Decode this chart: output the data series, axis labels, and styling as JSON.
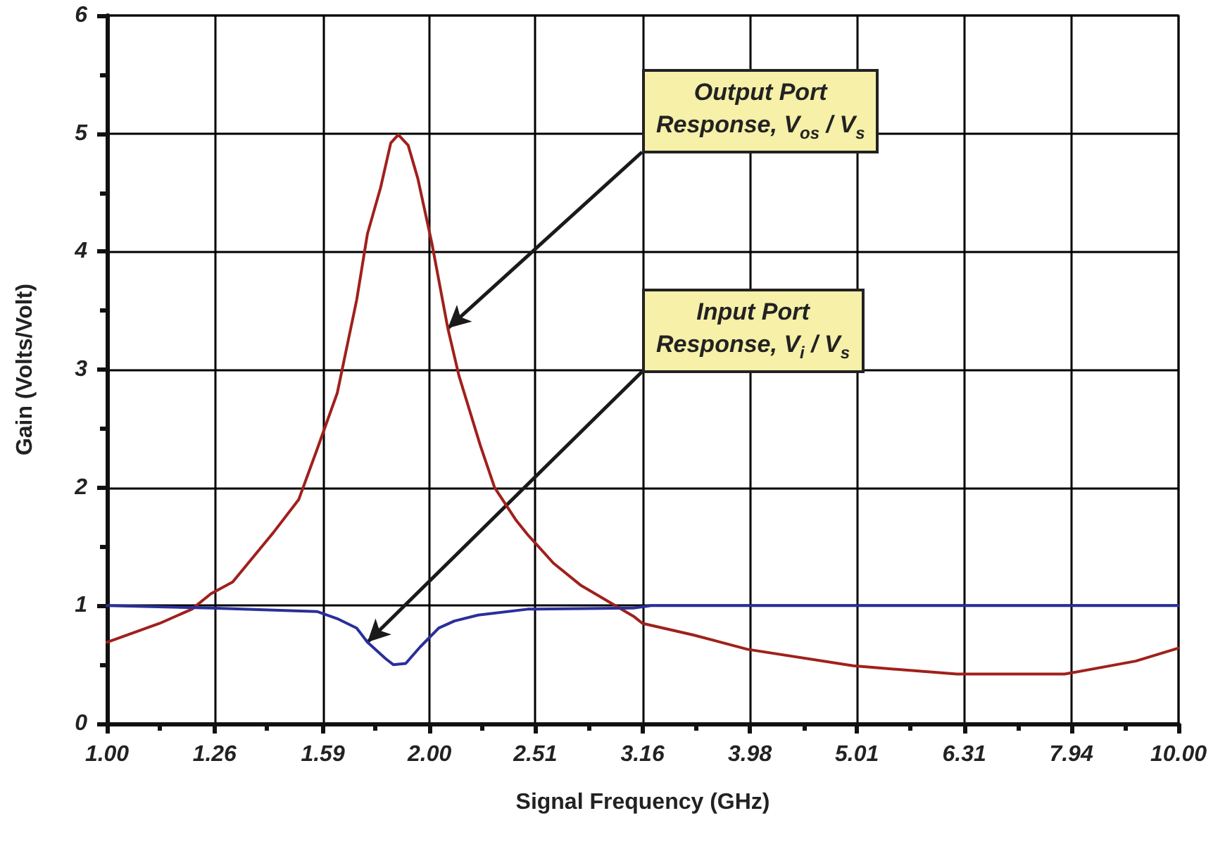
{
  "chart_data": {
    "type": "line",
    "xlabel": "Signal Frequency (GHz)",
    "ylabel": "Gain (Volts/Volt)",
    "log": "x",
    "xlim": [
      1,
      10
    ],
    "xticks": [
      {
        "value": 1,
        "label": "1.00"
      },
      {
        "value": 1.12,
        "label": null
      },
      1.26,
      {
        "value": 1.41,
        "label": null
      },
      1.59,
      {
        "value": 1.78,
        "label": null
      },
      {
        "value": 2,
        "label": "2.00"
      },
      {
        "value": 2.24,
        "label": null
      },
      2.51,
      {
        "value": 2.82,
        "label": null
      },
      3.16,
      {
        "value": 3.55,
        "label": null
      },
      3.98,
      {
        "value": 4.47,
        "label": null
      },
      5.01,
      {
        "value": 5.62,
        "label": null
      },
      6.31,
      {
        "value": 7.08,
        "label": null
      },
      7.94,
      {
        "value": 8.91,
        "label": null
      },
      {
        "value": 10,
        "label": "10.00"
      }
    ],
    "ylim": [
      0,
      6
    ],
    "yticks": [
      0,
      {
        "value": 0.5,
        "label": null
      },
      1,
      {
        "value": 1.5,
        "label": null
      },
      2,
      {
        "value": 2.5,
        "label": null
      },
      3,
      {
        "value": 3.5,
        "label": null
      },
      4,
      {
        "value": 4.5,
        "label": null
      },
      5,
      {
        "value": 5.5,
        "label": null
      },
      6
    ],
    "grid": true,
    "marker": "none",
    "line_style": "solid",
    "series": [
      {
        "color": "#a0201c",
        "x": [
          1,
          1.12,
          1.2,
          1.25,
          1.31,
          1.43,
          1.51,
          1.57,
          1.64,
          1.71,
          1.75,
          1.8,
          1.84,
          1.87,
          1.91,
          1.95,
          2.01,
          2.08,
          2.13,
          2.23,
          2.3,
          2.41,
          2.47,
          2.61,
          2.77,
          3.1,
          3.16,
          3.53,
          3.96,
          4.97,
          6.21,
          7.83,
          9.12,
          10
        ],
        "values": [
          0.69,
          0.85,
          0.97,
          1.1,
          1.2,
          1.62,
          1.9,
          2.32,
          2.8,
          3.59,
          4.15,
          4.54,
          4.92,
          4.99,
          4.9,
          4.62,
          4.07,
          3.35,
          2.95,
          2.36,
          2.0,
          1.72,
          1.6,
          1.36,
          1.17,
          0.91,
          0.85,
          0.75,
          0.63,
          0.49,
          0.42,
          0.42,
          0.53,
          0.64
        ]
      },
      {
        "color": "#2a2f9a",
        "x": [
          1,
          1.25,
          1.57,
          1.64,
          1.71,
          1.75,
          1.82,
          1.85,
          1.9,
          1.96,
          2.04,
          2.11,
          2.22,
          2.47,
          3.1,
          3.22,
          10
        ],
        "values": [
          1.0,
          0.98,
          0.95,
          0.89,
          0.81,
          0.69,
          0.55,
          0.5,
          0.51,
          0.65,
          0.81,
          0.87,
          0.92,
          0.97,
          0.98,
          1.0,
          1.0
        ]
      }
    ],
    "annotations": [
      {
        "text": "Output Port\nResponse, V$_{os}$ / V$_{s}$",
        "x": 2.08,
        "y": 3.35
      },
      {
        "text": "Input Port\nResponse, V$_{i}$ / V$_{s}$",
        "x": 1.75,
        "y": 0.69
      }
    ]
  }
}
